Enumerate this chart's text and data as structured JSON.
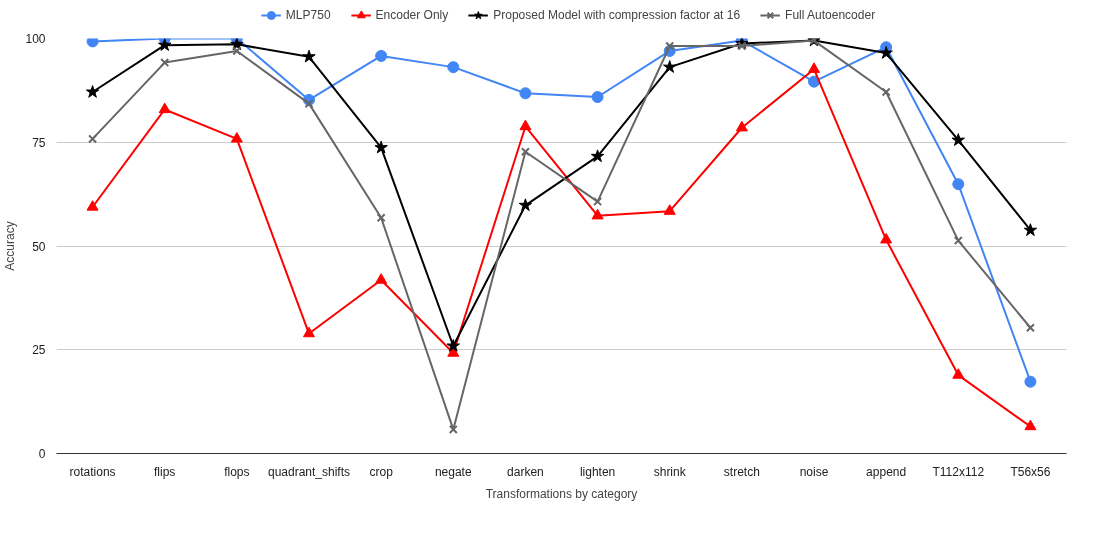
{
  "chart_data": {
    "type": "line",
    "xlabel": "Transformations by category",
    "ylabel": "Accuracy",
    "categories": [
      "rotations",
      "flips",
      "flops",
      "quadrant_shifts",
      "crop",
      "negate",
      "darken",
      "lighten",
      "shrink",
      "stretch",
      "noise",
      "append",
      "T112x112",
      "T56x56"
    ],
    "series": [
      {
        "name": "MLP750",
        "color": "#4285f4",
        "marker": "circle",
        "values": [
          99.3,
          100,
          100,
          85.2,
          95.8,
          93.1,
          86.8,
          85.9,
          97,
          99.5,
          89.6,
          97.9,
          64.9,
          17.3
        ]
      },
      {
        "name": "Encoder Only",
        "color": "#ff0000",
        "marker": "triangle",
        "values": [
          59.4,
          82.9,
          75.8,
          28.9,
          41.8,
          24.2,
          78.8,
          57.3,
          58.4,
          78.5,
          92.6,
          51.5,
          18.9,
          6.5
        ]
      },
      {
        "name": "Proposed Model with compression factor at 16",
        "color": "#000000",
        "marker": "star",
        "values": [
          87.1,
          98.4,
          98.6,
          95.6,
          73.7,
          25.9,
          59.8,
          71.6,
          93.1,
          98.8,
          99.5,
          96.5,
          75.5,
          53.8
        ]
      },
      {
        "name": "Full Autoencoder",
        "color": "#666666",
        "marker": "cross",
        "values": [
          75.8,
          94.2,
          97,
          84.3,
          56.8,
          5.8,
          72.7,
          60.7,
          98.2,
          98.2,
          99.5,
          87.1,
          51.3,
          30.3
        ]
      }
    ],
    "ylim": [
      0,
      100
    ],
    "yticks": [
      0,
      25,
      50,
      75,
      100
    ],
    "grid": "y",
    "legend": "top",
    "line_style": "solid"
  }
}
